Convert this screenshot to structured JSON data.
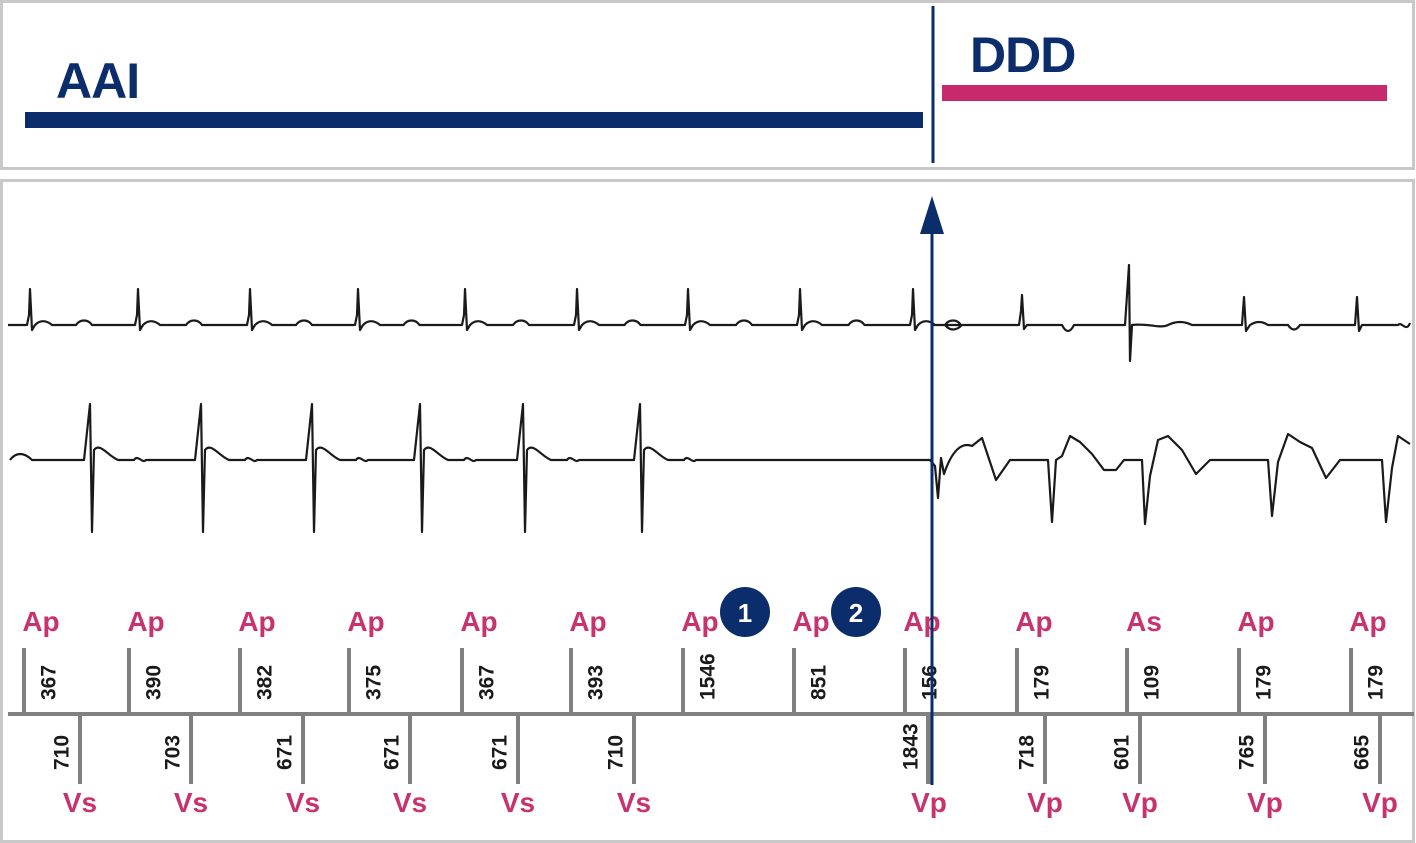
{
  "modes": {
    "left": {
      "label": "AAI",
      "color": "#0b2d6b"
    },
    "right": {
      "label": "DDD",
      "color": "#c8286e"
    }
  },
  "colors": {
    "navy": "#0b2d6b",
    "event": "#c8326e",
    "trace": "#1a1a1a",
    "frame": "#c8c8c8",
    "tick": "#808080"
  },
  "markers": [
    {
      "label": "1"
    },
    {
      "label": "2"
    }
  ],
  "atrial_events": [
    "Ap",
    "Ap",
    "Ap",
    "Ap",
    "Ap",
    "Ap",
    "Ap",
    "Ap",
    "Ap",
    "Ap",
    "As",
    "Ap",
    "Ap"
  ],
  "atrial_intervals": [
    "367",
    "390",
    "382",
    "375",
    "367",
    "393",
    "1546",
    "851",
    "156",
    "179",
    "109",
    "179",
    "179"
  ],
  "ventricular_intervals": [
    "710",
    "703",
    "671",
    "671",
    "671",
    "710",
    "1843",
    "718",
    "601",
    "765",
    "665"
  ],
  "ventricular_events": [
    "Vs",
    "Vs",
    "Vs",
    "Vs",
    "Vs",
    "Vs",
    "Vp",
    "Vp",
    "Vp",
    "Vp",
    "Vp"
  ]
}
